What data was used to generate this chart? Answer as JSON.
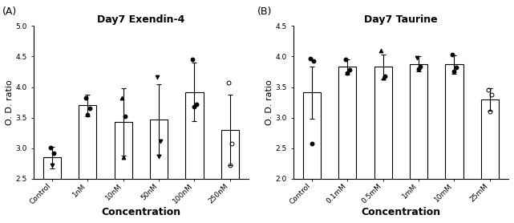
{
  "panel_A": {
    "title": "Day7 Exendin-4",
    "xlabel": "Concentration",
    "ylabel": "O. D. ratio",
    "ylim": [
      2.5,
      5.0
    ],
    "yticks": [
      2.5,
      3.0,
      3.5,
      4.0,
      4.5,
      5.0
    ],
    "categories": [
      "Control",
      "1nM",
      "10nM",
      "50nM",
      "100nM",
      "250nM"
    ],
    "bar_means": [
      2.85,
      3.7,
      3.43,
      3.47,
      3.92,
      3.3
    ],
    "bar_errors": [
      0.18,
      0.18,
      0.55,
      0.58,
      0.48,
      0.58
    ],
    "data_points": [
      {
        "vals": [
          3.01,
          2.92,
          2.72
        ],
        "markers": [
          "o",
          "o",
          "v"
        ],
        "filled": [
          true,
          true,
          true
        ]
      },
      {
        "vals": [
          3.82,
          3.65,
          3.55
        ],
        "markers": [
          "o",
          "o",
          "o"
        ],
        "filled": [
          true,
          true,
          true
        ]
      },
      {
        "vals": [
          3.82,
          3.52,
          2.85
        ],
        "markers": [
          "^",
          "o",
          "^"
        ],
        "filled": [
          true,
          true,
          true
        ]
      },
      {
        "vals": [
          4.17,
          3.12,
          2.87
        ],
        "markers": [
          "v",
          "v",
          "v"
        ],
        "filled": [
          true,
          true,
          true
        ]
      },
      {
        "vals": [
          4.45,
          3.72,
          3.68
        ],
        "markers": [
          "o",
          "o",
          "o"
        ],
        "filled": [
          true,
          true,
          true
        ]
      },
      {
        "vals": [
          4.07,
          3.08,
          2.72
        ],
        "markers": [
          "o",
          "o",
          "o"
        ],
        "filled": [
          false,
          false,
          false
        ]
      }
    ]
  },
  "panel_B": {
    "title": "Day7 Taurine",
    "xlabel": "Concentration",
    "ylabel": "O. D. ratio",
    "ylim": [
      2.0,
      4.5
    ],
    "yticks": [
      2.0,
      2.5,
      3.0,
      3.5,
      4.0,
      4.5
    ],
    "categories": [
      "Control",
      "0.1mM",
      "0.5mM",
      "1mM",
      "10mM",
      "25mM"
    ],
    "bar_means": [
      3.41,
      3.83,
      3.83,
      3.88,
      3.87,
      3.3
    ],
    "bar_errors": [
      0.43,
      0.12,
      0.2,
      0.13,
      0.15,
      0.18
    ],
    "data_points": [
      {
        "vals": [
          3.97,
          3.93,
          2.58
        ],
        "markers": [
          "o",
          "o",
          "o"
        ],
        "filled": [
          true,
          true,
          true
        ]
      },
      {
        "vals": [
          3.95,
          3.78,
          3.73
        ],
        "markers": [
          "o",
          "o",
          "o"
        ],
        "filled": [
          true,
          true,
          true
        ]
      },
      {
        "vals": [
          4.1,
          3.68,
          3.65
        ],
        "markers": [
          "^",
          "o",
          "^"
        ],
        "filled": [
          true,
          true,
          true
        ]
      },
      {
        "vals": [
          3.98,
          3.83,
          3.8
        ],
        "markers": [
          "v",
          "o",
          "o"
        ],
        "filled": [
          true,
          true,
          true
        ]
      },
      {
        "vals": [
          4.03,
          3.82,
          3.75
        ],
        "markers": [
          "o",
          "o",
          "o"
        ],
        "filled": [
          true,
          true,
          true
        ]
      },
      {
        "vals": [
          3.45,
          3.37,
          3.1
        ],
        "markers": [
          "o",
          "o",
          "o"
        ],
        "filled": [
          false,
          false,
          false
        ]
      }
    ]
  },
  "bar_color": "#ffffff",
  "bar_edgecolor": "#000000",
  "bar_linewidth": 0.8,
  "bar_width": 0.5,
  "error_color": "#000000",
  "error_linewidth": 0.8,
  "error_capsize": 2.0,
  "point_color": "#000000",
  "point_size": 3.5,
  "point_jitter": [
    -0.05,
    0.05,
    0.0
  ],
  "label_A": "(A)",
  "label_B": "(B)",
  "title_fontsize": 9,
  "axis_label_fontsize": 8,
  "xlabel_fontsize": 9,
  "tick_fontsize": 6.5,
  "panel_label_fontsize": 9,
  "spine_linewidth": 0.8
}
